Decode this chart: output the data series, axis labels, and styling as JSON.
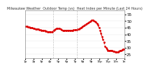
{
  "title": "Milwaukee Weather  Outdoor Temp (vs)  Heat Index per Minute (Last 24 Hours)",
  "line_color": "#dd0000",
  "line_style": "--",
  "marker": ".",
  "marker_size": 2,
  "linewidth": 0.8,
  "background_color": "#ffffff",
  "grid_color": "#cccccc",
  "vline_color": "#aaaaaa",
  "vline_positions": [
    0.28,
    0.52
  ],
  "ylim": [
    22,
    58
  ],
  "yticks": [
    25,
    30,
    35,
    40,
    45,
    50,
    55
  ],
  "ylabel_fontsize": 4,
  "xlabel_fontsize": 3,
  "title_fontsize": 3.5,
  "y_data": [
    46,
    46,
    46,
    45.5,
    45.5,
    45,
    45,
    45,
    44.5,
    44.5,
    44,
    44,
    44,
    44,
    43.5,
    43.5,
    43,
    43,
    43,
    43,
    42.5,
    42.5,
    42,
    42,
    42,
    42,
    42,
    42,
    43,
    43.5,
    44,
    44.5,
    44.5,
    44.5,
    44.5,
    44,
    43.5,
    43,
    43,
    43,
    43,
    43,
    43,
    43,
    43,
    43,
    43,
    43,
    43.5,
    43.5,
    43.5,
    43.5,
    44,
    44,
    44.5,
    45,
    45.5,
    46,
    46.5,
    47,
    47.5,
    48,
    48.5,
    49,
    49.5,
    50,
    50.5,
    50.5,
    50,
    49.5,
    49,
    48,
    47,
    45,
    43,
    41,
    38,
    36,
    34,
    31,
    30,
    29,
    28,
    28,
    28,
    28,
    28,
    27.5,
    27.5,
    27,
    27,
    27,
    27,
    27.5,
    28,
    28,
    28.5,
    29,
    29
  ],
  "xtick_labels": [
    "1p",
    "2p",
    "3p",
    "4p",
    "5p",
    "6p",
    "7p",
    "8p",
    "9p",
    "10p",
    "11p",
    "12a",
    "1a"
  ],
  "num_xticks": 13
}
